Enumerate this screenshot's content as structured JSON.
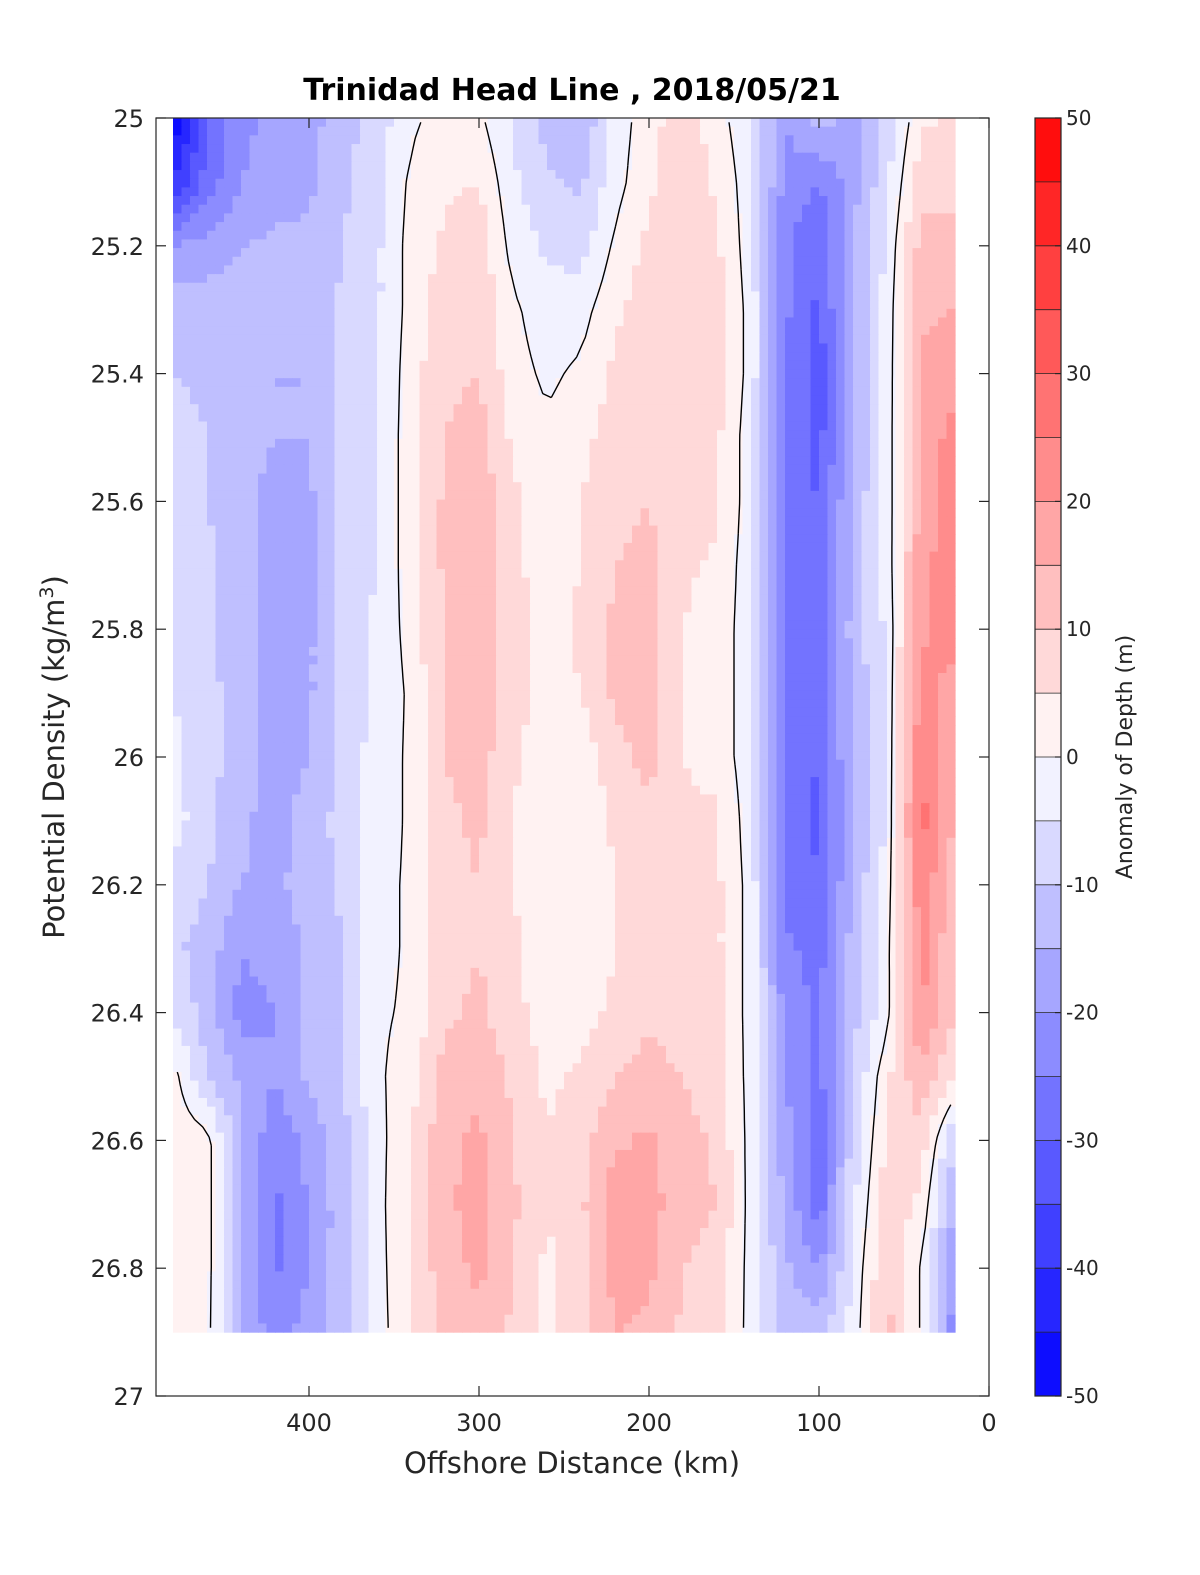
{
  "chart_data": {
    "type": "heatmap",
    "title": "Trinidad Head Line , 2018/05/21",
    "xlabel": "Offshore Distance (km)",
    "ylabel": "Potential Density (kg/m",
    "ylabel_sup": "3",
    "ylabel_close": ")",
    "colorbar_label": "Anomaly of Depth (m)",
    "xlim": [
      490,
      0
    ],
    "ylim": [
      25,
      27
    ],
    "x_reversed": true,
    "y_reversed": true,
    "x_ticks": [
      400,
      300,
      200,
      100,
      0
    ],
    "y_ticks": [
      25,
      25.2,
      25.4,
      25.6,
      25.8,
      26,
      26.2,
      26.4,
      26.6,
      26.8,
      27
    ],
    "y_tick_labels": [
      "25",
      "25.2",
      "25.4",
      "25.6",
      "25.8",
      "26",
      "26.2",
      "26.4",
      "26.6",
      "26.8",
      "27"
    ],
    "colorbar_range": [
      -50,
      50
    ],
    "colorbar_ticks": [
      -50,
      -40,
      -30,
      -20,
      -10,
      0,
      10,
      20,
      30,
      40,
      50
    ],
    "contour_levels_step": 5,
    "zero_contour_shown": true,
    "colormap": "blue-white-red",
    "color_negative": "#0000ff",
    "color_zero": "#ffffff",
    "color_positive": "#ff0000",
    "data_density_range": [
      25,
      26.9
    ],
    "x": [
      480,
      460,
      440,
      420,
      400,
      380,
      360,
      340,
      320,
      300,
      280,
      260,
      240,
      220,
      200,
      180,
      160,
      140,
      120,
      100,
      80,
      60,
      40,
      20
    ],
    "y": [
      25,
      25.1,
      25.2,
      25.3,
      25.4,
      25.5,
      25.6,
      25.7,
      25.8,
      25.9,
      26,
      26.1,
      26.2,
      26.3,
      26.4,
      26.5,
      26.6,
      26.7,
      26.8,
      26.9
    ],
    "z": [
      [
        -50,
        -30,
        -22,
        -18,
        -17,
        -12,
        -8,
        -1,
        2,
        1,
        -6,
        -12,
        -15,
        -3,
        3,
        8,
        2,
        -4,
        -20,
        -12,
        -18,
        -8,
        4,
        6
      ],
      [
        -40,
        -28,
        -20,
        -17,
        -16,
        -11,
        -6,
        1,
        4,
        5,
        -4,
        -9,
        -11,
        -2,
        4,
        9,
        4,
        -3,
        -22,
        -25,
        -17,
        -6,
        8,
        8
      ],
      [
        -20,
        -18,
        -15,
        -14,
        -14,
        -10,
        -6,
        2,
        6,
        8,
        -2,
        -6,
        -7,
        1,
        6,
        10,
        6,
        -3,
        -24,
        -30,
        -15,
        -4,
        12,
        12
      ],
      [
        -12,
        -12,
        -13,
        -14,
        -14,
        -9,
        -6,
        2,
        8,
        9,
        1,
        -3,
        -2,
        4,
        8,
        10,
        7,
        -2,
        -24,
        -31,
        -15,
        -3,
        14,
        15
      ],
      [
        -10,
        -11,
        -13,
        -15,
        -15,
        -9,
        -6,
        3,
        9,
        10,
        2,
        -1,
        1,
        6,
        8,
        10,
        7,
        -2,
        -25,
        -33,
        -15,
        -3,
        16,
        18
      ],
      [
        -8,
        -10,
        -13,
        -15,
        -15,
        -9,
        -5,
        3,
        10,
        12,
        4,
        1,
        3,
        8,
        9,
        10,
        6,
        -3,
        -26,
        -32,
        -15,
        -3,
        17,
        22
      ],
      [
        -7,
        -10,
        -13,
        -17,
        -16,
        -9,
        -5,
        3,
        11,
        14,
        6,
        3,
        5,
        9,
        10,
        8,
        6,
        -3,
        -27,
        -30,
        -14,
        -3,
        17,
        22
      ],
      [
        -6,
        -9,
        -13,
        -17,
        -16,
        -9,
        -5,
        3,
        11,
        14,
        6,
        3,
        5,
        10,
        11,
        6,
        4,
        -3,
        -28,
        -30,
        -14,
        -3,
        18,
        24
      ],
      [
        -5,
        -9,
        -13,
        -17,
        -16,
        -8,
        -4,
        2,
        11,
        14,
        7,
        3,
        6,
        11,
        12,
        5,
        3,
        -3,
        -27,
        -28,
        -13,
        -4,
        19,
        22
      ],
      [
        -5,
        -8,
        -13,
        -17,
        -16,
        -8,
        -4,
        1,
        11,
        14,
        7,
        3,
        5,
        11,
        13,
        5,
        3,
        -3,
        -27,
        -28,
        -14,
        -4,
        22,
        18
      ],
      [
        -4,
        -8,
        -13,
        -17,
        -15,
        -8,
        -3,
        1,
        10,
        12,
        6,
        2,
        2,
        8,
        12,
        5,
        3,
        -3,
        -28,
        -30,
        -14,
        -4,
        25,
        14
      ],
      [
        -3,
        -8,
        -14,
        -17,
        -13,
        -8,
        -3,
        1,
        9,
        11,
        5,
        1,
        1,
        6,
        8,
        6,
        6,
        -3,
        -28,
        -31,
        -15,
        -4,
        27,
        14
      ],
      [
        -7,
        -10,
        -15,
        -16,
        -13,
        -9,
        -2,
        1,
        8,
        10,
        5,
        1,
        1,
        5,
        7,
        6,
        6,
        -2,
        -26,
        -30,
        -14,
        -3,
        24,
        12
      ],
      [
        -9,
        -12,
        -20,
        -18,
        -14,
        -10,
        -2,
        1,
        8,
        10,
        6,
        2,
        2,
        5,
        8,
        6,
        6,
        -2,
        -24,
        -27,
        -13,
        -2,
        22,
        10
      ],
      [
        -6,
        -12,
        -22,
        -20,
        -14,
        -10,
        -1,
        1,
        9,
        11,
        7,
        2,
        3,
        6,
        9,
        7,
        6,
        -2,
        -22,
        -26,
        -12,
        -2,
        21,
        10
      ],
      [
        2,
        -10,
        -16,
        -20,
        -14,
        -10,
        -1,
        3,
        12,
        14,
        9,
        4,
        6,
        10,
        12,
        10,
        7,
        -2,
        -20,
        -27,
        -10,
        4,
        14,
        5
      ],
      [
        4,
        2,
        -14,
        -24,
        -18,
        -12,
        -2,
        5,
        14,
        16,
        10,
        5,
        8,
        14,
        16,
        12,
        9,
        -2,
        -18,
        -28,
        -8,
        6,
        8,
        -10
      ],
      [
        4,
        2,
        -14,
        -26,
        -20,
        -12,
        -2,
        6,
        14,
        17,
        11,
        5,
        9,
        18,
        17,
        12,
        10,
        -2,
        -16,
        -28,
        -6,
        8,
        4,
        -16
      ],
      [
        4,
        2,
        -14,
        -26,
        -20,
        -12,
        -2,
        5,
        13,
        16,
        10,
        4,
        8,
        17,
        16,
        10,
        8,
        -2,
        -14,
        -20,
        -4,
        10,
        0,
        -20
      ],
      [
        4,
        2,
        -16,
        -22,
        -18,
        -12,
        -2,
        4,
        12,
        14,
        9,
        4,
        7,
        15,
        14,
        9,
        7,
        -2,
        -12,
        -12,
        -3,
        12,
        0,
        -24
      ]
    ]
  }
}
